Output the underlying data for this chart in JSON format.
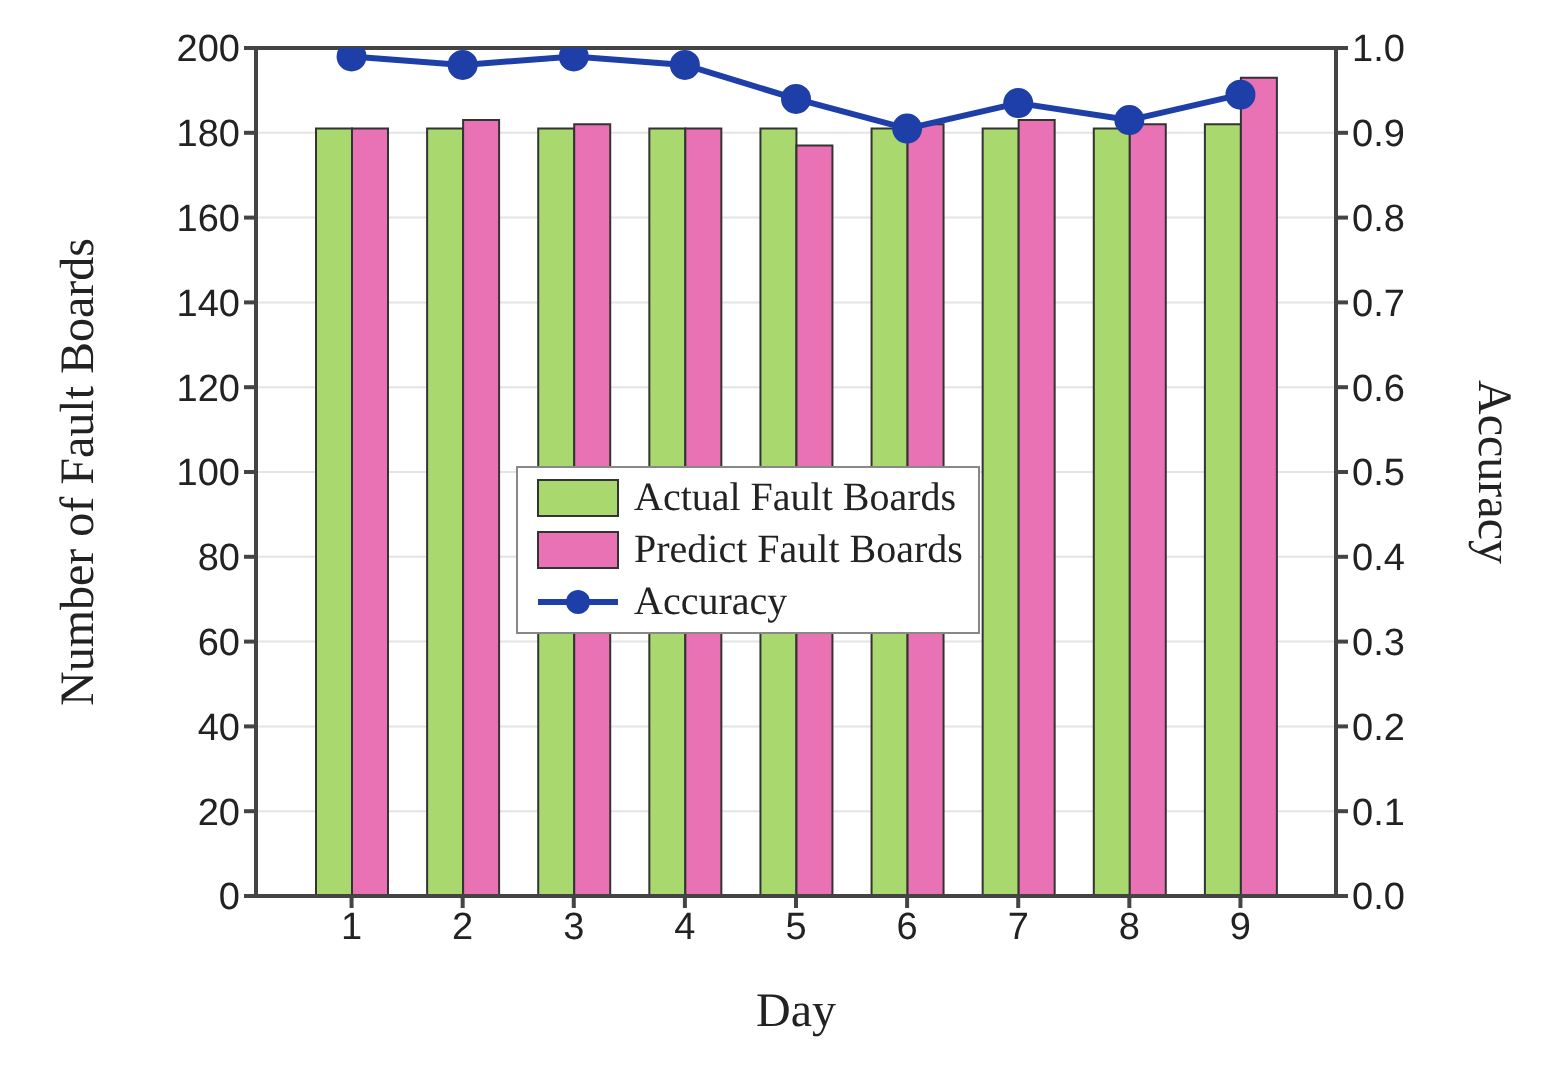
{
  "chart_data": {
    "type": "bar",
    "xlabel": "Day",
    "ylabel": "Number of Fault Boards",
    "y2label": "Accuracy",
    "categories": [
      "1",
      "2",
      "3",
      "4",
      "5",
      "6",
      "7",
      "8",
      "9"
    ],
    "series": [
      {
        "name": "Actual Fault Boards",
        "color": "#a8d86e",
        "values": [
          181,
          181,
          181,
          181,
          181,
          181,
          181,
          181,
          182
        ]
      },
      {
        "name": "Predict Fault Boards",
        "color": "#e872b4",
        "values": [
          181,
          183,
          182,
          181,
          177,
          182,
          183,
          182,
          193
        ]
      },
      {
        "name": "Accuracy",
        "type": "line",
        "axis": "y2",
        "color": "#1f3fa8",
        "marker": "circle",
        "values": [
          0.99,
          0.98,
          0.99,
          0.98,
          0.94,
          0.905,
          0.935,
          0.915,
          0.945
        ]
      }
    ],
    "ylim": [
      0,
      200
    ],
    "yticks": [
      0,
      20,
      40,
      60,
      80,
      100,
      120,
      140,
      160,
      180,
      200
    ],
    "y2lim": [
      0,
      1
    ],
    "y2ticks": [
      {
        "value": 0,
        "label": "0.0"
      },
      0.1,
      0.2,
      0.3,
      0.4,
      0.5,
      0.6,
      0.7,
      0.8,
      0.9,
      {
        "value": 1,
        "label": "1.0"
      }
    ],
    "grid": "y",
    "legend": "center"
  }
}
